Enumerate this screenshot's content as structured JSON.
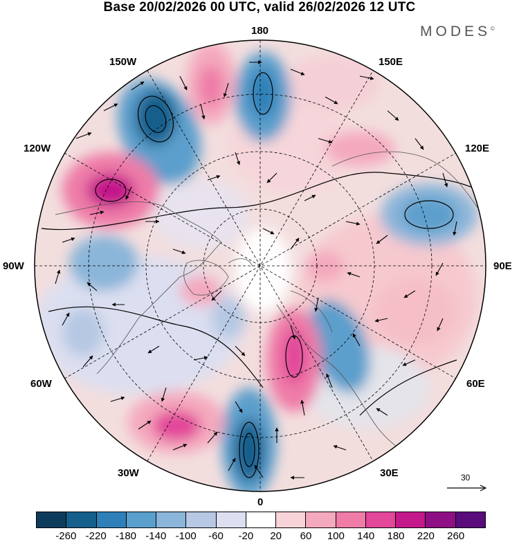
{
  "title": "Base 20/02/2026 00 UTC, valid 26/02/2026 12 UTC",
  "brand": "MODES",
  "brand_mark": "©",
  "longitude_labels": {
    "top": "180",
    "upper_left": "150W",
    "upper_right": "150E",
    "left_upper": "120W",
    "right_upper": "120E",
    "left": "90W",
    "right": "90E",
    "left_lower": "60W",
    "right_lower": "60E",
    "lower_left": "30W",
    "lower_right": "30E",
    "bottom": "0"
  },
  "vector_reference": "30",
  "colorbar": {
    "colors": [
      "#0d3b5c",
      "#155f8c",
      "#2f80b8",
      "#5b9fcc",
      "#8bb5d9",
      "#b6c8e3",
      "#dcdff0",
      "#ffffff",
      "#f8d3d8",
      "#f4a9bd",
      "#ee7ca7",
      "#e2479a",
      "#c4198b",
      "#8e0e84",
      "#5a0c7c"
    ],
    "labels": [
      "-260",
      "-220",
      "-180",
      "-140",
      "-100",
      "-60",
      "-20",
      "20",
      "60",
      "100",
      "140",
      "180",
      "220",
      "260"
    ]
  }
}
